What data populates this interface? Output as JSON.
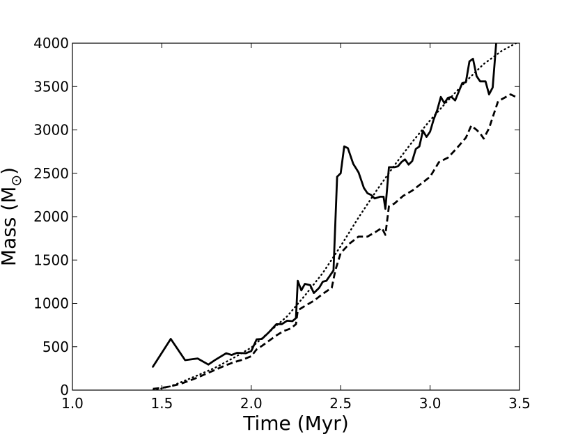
{
  "chart_data": {
    "type": "line",
    "title": "",
    "xlabel": "Time (Myr)",
    "ylabel_text": "Mass (M",
    "ylabel_symbol": "⊙",
    "ylabel_close": ")",
    "xlim": [
      1.0,
      3.5
    ],
    "ylim": [
      0,
      4000
    ],
    "xticks": [
      1.0,
      1.5,
      2.0,
      2.5,
      3.0,
      3.5
    ],
    "xtick_labels": [
      "1.0",
      "1.5",
      "2.0",
      "2.5",
      "3.0",
      "3.5"
    ],
    "yticks": [
      0,
      500,
      1000,
      1500,
      2000,
      2500,
      3000,
      3500,
      4000
    ],
    "ytick_labels": [
      "0",
      "500",
      "1000",
      "1500",
      "2000",
      "2500",
      "3000",
      "3500",
      "4000"
    ],
    "grid": false,
    "series": [
      {
        "style": "solid",
        "color": "#000000",
        "points": [
          [
            1.45,
            270
          ],
          [
            1.55,
            590
          ],
          [
            1.63,
            345
          ],
          [
            1.7,
            365
          ],
          [
            1.76,
            295
          ],
          [
            1.8,
            350
          ],
          [
            1.86,
            425
          ],
          [
            1.89,
            405
          ],
          [
            1.92,
            430
          ],
          [
            1.97,
            425
          ],
          [
            2.0,
            450
          ],
          [
            2.03,
            585
          ],
          [
            2.06,
            590
          ],
          [
            2.1,
            670
          ],
          [
            2.14,
            760
          ],
          [
            2.17,
            760
          ],
          [
            2.2,
            800
          ],
          [
            2.23,
            795
          ],
          [
            2.25,
            830
          ],
          [
            2.26,
            1260
          ],
          [
            2.28,
            1150
          ],
          [
            2.3,
            1225
          ],
          [
            2.33,
            1210
          ],
          [
            2.35,
            1120
          ],
          [
            2.38,
            1180
          ],
          [
            2.4,
            1250
          ],
          [
            2.42,
            1260
          ],
          [
            2.44,
            1320
          ],
          [
            2.46,
            1380
          ],
          [
            2.48,
            2460
          ],
          [
            2.5,
            2500
          ],
          [
            2.52,
            2810
          ],
          [
            2.54,
            2790
          ],
          [
            2.57,
            2610
          ],
          [
            2.6,
            2510
          ],
          [
            2.63,
            2330
          ],
          [
            2.65,
            2270
          ],
          [
            2.67,
            2250
          ],
          [
            2.69,
            2210
          ],
          [
            2.72,
            2230
          ],
          [
            2.74,
            2230
          ],
          [
            2.75,
            2090
          ],
          [
            2.77,
            2570
          ],
          [
            2.8,
            2570
          ],
          [
            2.82,
            2580
          ],
          [
            2.84,
            2630
          ],
          [
            2.86,
            2660
          ],
          [
            2.88,
            2600
          ],
          [
            2.9,
            2640
          ],
          [
            2.92,
            2780
          ],
          [
            2.94,
            2810
          ],
          [
            2.96,
            2990
          ],
          [
            2.98,
            2920
          ],
          [
            3.0,
            2980
          ],
          [
            3.02,
            3120
          ],
          [
            3.04,
            3230
          ],
          [
            3.06,
            3380
          ],
          [
            3.08,
            3310
          ],
          [
            3.1,
            3370
          ],
          [
            3.12,
            3380
          ],
          [
            3.14,
            3340
          ],
          [
            3.16,
            3440
          ],
          [
            3.18,
            3540
          ],
          [
            3.2,
            3550
          ],
          [
            3.22,
            3790
          ],
          [
            3.24,
            3820
          ],
          [
            3.26,
            3620
          ],
          [
            3.28,
            3560
          ],
          [
            3.31,
            3560
          ],
          [
            3.33,
            3410
          ],
          [
            3.35,
            3490
          ],
          [
            3.37,
            4010
          ]
        ]
      },
      {
        "style": "dashed",
        "color": "#000000",
        "points": [
          [
            1.45,
            15
          ],
          [
            1.5,
            25
          ],
          [
            1.55,
            45
          ],
          [
            1.6,
            70
          ],
          [
            1.65,
            105
          ],
          [
            1.7,
            145
          ],
          [
            1.75,
            190
          ],
          [
            1.8,
            235
          ],
          [
            1.85,
            280
          ],
          [
            1.9,
            320
          ],
          [
            1.95,
            350
          ],
          [
            2.0,
            390
          ],
          [
            2.03,
            470
          ],
          [
            2.06,
            510
          ],
          [
            2.1,
            570
          ],
          [
            2.14,
            630
          ],
          [
            2.18,
            680
          ],
          [
            2.22,
            710
          ],
          [
            2.25,
            760
          ],
          [
            2.26,
            920
          ],
          [
            2.3,
            970
          ],
          [
            2.35,
            1030
          ],
          [
            2.4,
            1110
          ],
          [
            2.45,
            1180
          ],
          [
            2.47,
            1380
          ],
          [
            2.5,
            1580
          ],
          [
            2.55,
            1690
          ],
          [
            2.6,
            1770
          ],
          [
            2.65,
            1770
          ],
          [
            2.7,
            1830
          ],
          [
            2.73,
            1870
          ],
          [
            2.75,
            1790
          ],
          [
            2.77,
            2120
          ],
          [
            2.8,
            2150
          ],
          [
            2.85,
            2240
          ],
          [
            2.9,
            2300
          ],
          [
            2.95,
            2380
          ],
          [
            3.0,
            2460
          ],
          [
            3.05,
            2630
          ],
          [
            3.1,
            2680
          ],
          [
            3.15,
            2790
          ],
          [
            3.2,
            2910
          ],
          [
            3.23,
            3050
          ],
          [
            3.26,
            3000
          ],
          [
            3.28,
            2960
          ],
          [
            3.3,
            2900
          ],
          [
            3.33,
            3020
          ],
          [
            3.38,
            3330
          ],
          [
            3.45,
            3410
          ],
          [
            3.48,
            3380
          ]
        ]
      },
      {
        "style": "dotted",
        "color": "#000000",
        "points": [
          [
            1.45,
            0
          ],
          [
            1.5,
            20
          ],
          [
            1.55,
            45
          ],
          [
            1.6,
            85
          ],
          [
            1.7,
            170
          ],
          [
            1.8,
            260
          ],
          [
            1.9,
            370
          ],
          [
            2.0,
            490
          ],
          [
            2.1,
            670
          ],
          [
            2.2,
            850
          ],
          [
            2.3,
            1090
          ],
          [
            2.4,
            1350
          ],
          [
            2.5,
            1660
          ],
          [
            2.6,
            1990
          ],
          [
            2.7,
            2300
          ],
          [
            2.8,
            2590
          ],
          [
            2.9,
            2860
          ],
          [
            3.0,
            3110
          ],
          [
            3.1,
            3340
          ],
          [
            3.2,
            3560
          ],
          [
            3.3,
            3760
          ],
          [
            3.4,
            3910
          ],
          [
            3.48,
            4000
          ]
        ]
      }
    ]
  }
}
